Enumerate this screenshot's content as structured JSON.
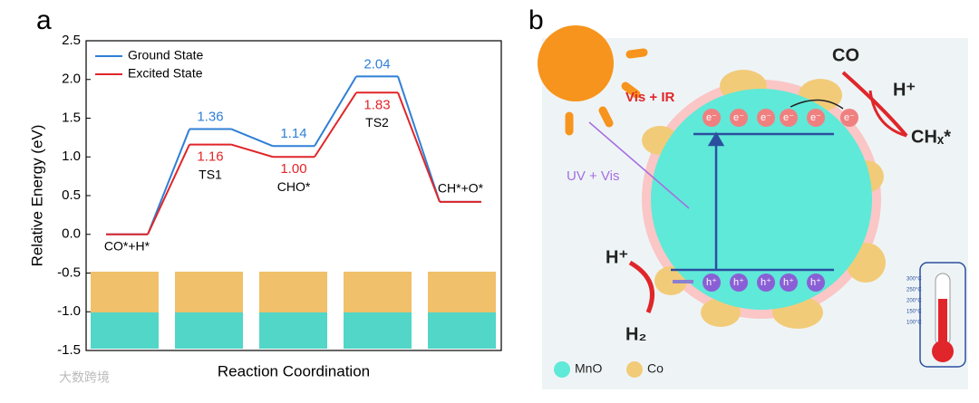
{
  "panel_a_label": "a",
  "chart_data": {
    "type": "energy-diagram",
    "ylabel": "Relative Energy (eV)",
    "xlabel": "Reaction Coordination",
    "categories": [
      "CO*+H*",
      "TS1",
      "CHO*",
      "TS2",
      "CH*+O*"
    ],
    "series": [
      {
        "name": "Ground State",
        "color": "#2f7fd6",
        "values": [
          0,
          1.36,
          1.14,
          2.04,
          0.42
        ],
        "value_labels": [
          null,
          "1.36",
          "1.14",
          "2.04",
          null
        ]
      },
      {
        "name": "Excited State",
        "color": "#e0262a",
        "values": [
          0,
          1.16,
          1.0,
          1.83,
          0.42
        ],
        "value_labels": [
          null,
          "1.16",
          "1.00",
          "1.83",
          null
        ]
      }
    ],
    "ylim": [
      -1.5,
      2.5
    ],
    "yticks": [
      -1.5,
      {
        "value": -1,
        "label": "-1.0"
      },
      -0.5,
      {
        "value": 0,
        "label": "0.0"
      },
      0.5,
      {
        "value": 1,
        "label": "1.0"
      },
      1.5,
      {
        "value": 2,
        "label": "2.0"
      },
      2.5
    ],
    "legend": "upper left"
  },
  "panel_b": {
    "label": "b",
    "co": "CO",
    "h_plus_top": "H⁺",
    "chx": "CHₓ*",
    "vis_ir": "Vis + IR",
    "uv_vis": "UV + Vis",
    "h_plus_left": "H⁺",
    "h2": "H₂",
    "electron": "e⁻",
    "hole": "h⁺",
    "legend": [
      "MnO",
      "Co"
    ],
    "thermometer": [
      "300°C",
      "250°C",
      "200°C",
      "150°C",
      "100°C"
    ]
  },
  "watermark": "大数跨境"
}
